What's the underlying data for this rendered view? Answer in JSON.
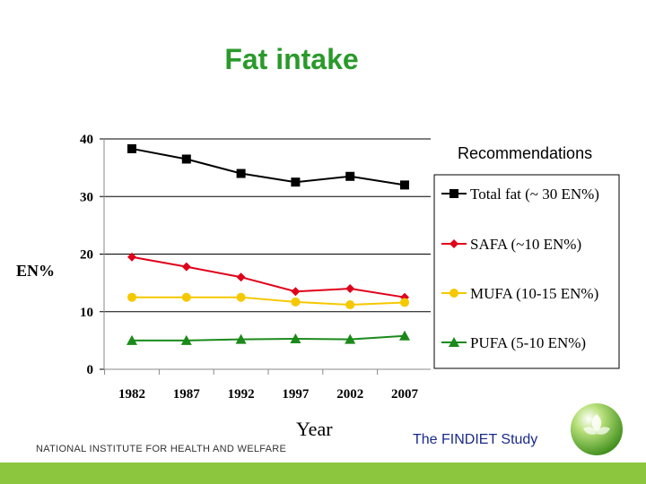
{
  "slide_title": "Fat intake",
  "footer": {
    "institute": "NATIONAL INSTITUTE FOR HEALTH AND WELFARE",
    "study": "The FINDIET Study"
  },
  "colors": {
    "title": "#2a9a2a",
    "footer_bar": "#8cc63f",
    "study_text": "#1a2a8a"
  },
  "chart_data": {
    "type": "line",
    "title": "",
    "xlabel": "Year",
    "ylabel": "EN%",
    "ylim": [
      0,
      40
    ],
    "yticks": [
      "0",
      "10",
      "20",
      "30",
      "40"
    ],
    "categories": [
      "1982",
      "1987",
      "1992",
      "1997",
      "2002",
      "2007"
    ],
    "legend_title": "Recommendations",
    "legend_position": "right",
    "grid": "horizontal",
    "series": [
      {
        "name": "Total fat (~ 30 EN%)",
        "color": "#000000",
        "marker": "square",
        "values": [
          38.3,
          36.5,
          34.0,
          32.5,
          33.5,
          32.0
        ]
      },
      {
        "name": "SAFA (~10 EN%)",
        "color": "#e0001a",
        "marker": "diamond",
        "values": [
          19.5,
          17.8,
          16.0,
          13.5,
          14.0,
          12.5
        ]
      },
      {
        "name": "MUFA (10-15 EN%)",
        "color": "#f5c800",
        "marker": "circle",
        "values": [
          12.5,
          12.5,
          12.5,
          11.7,
          11.2,
          11.6
        ]
      },
      {
        "name": "PUFA (5-10 EN%)",
        "color": "#1a8a1a",
        "marker": "triangle",
        "values": [
          5.0,
          5.0,
          5.2,
          5.3,
          5.2,
          5.8
        ]
      }
    ]
  }
}
